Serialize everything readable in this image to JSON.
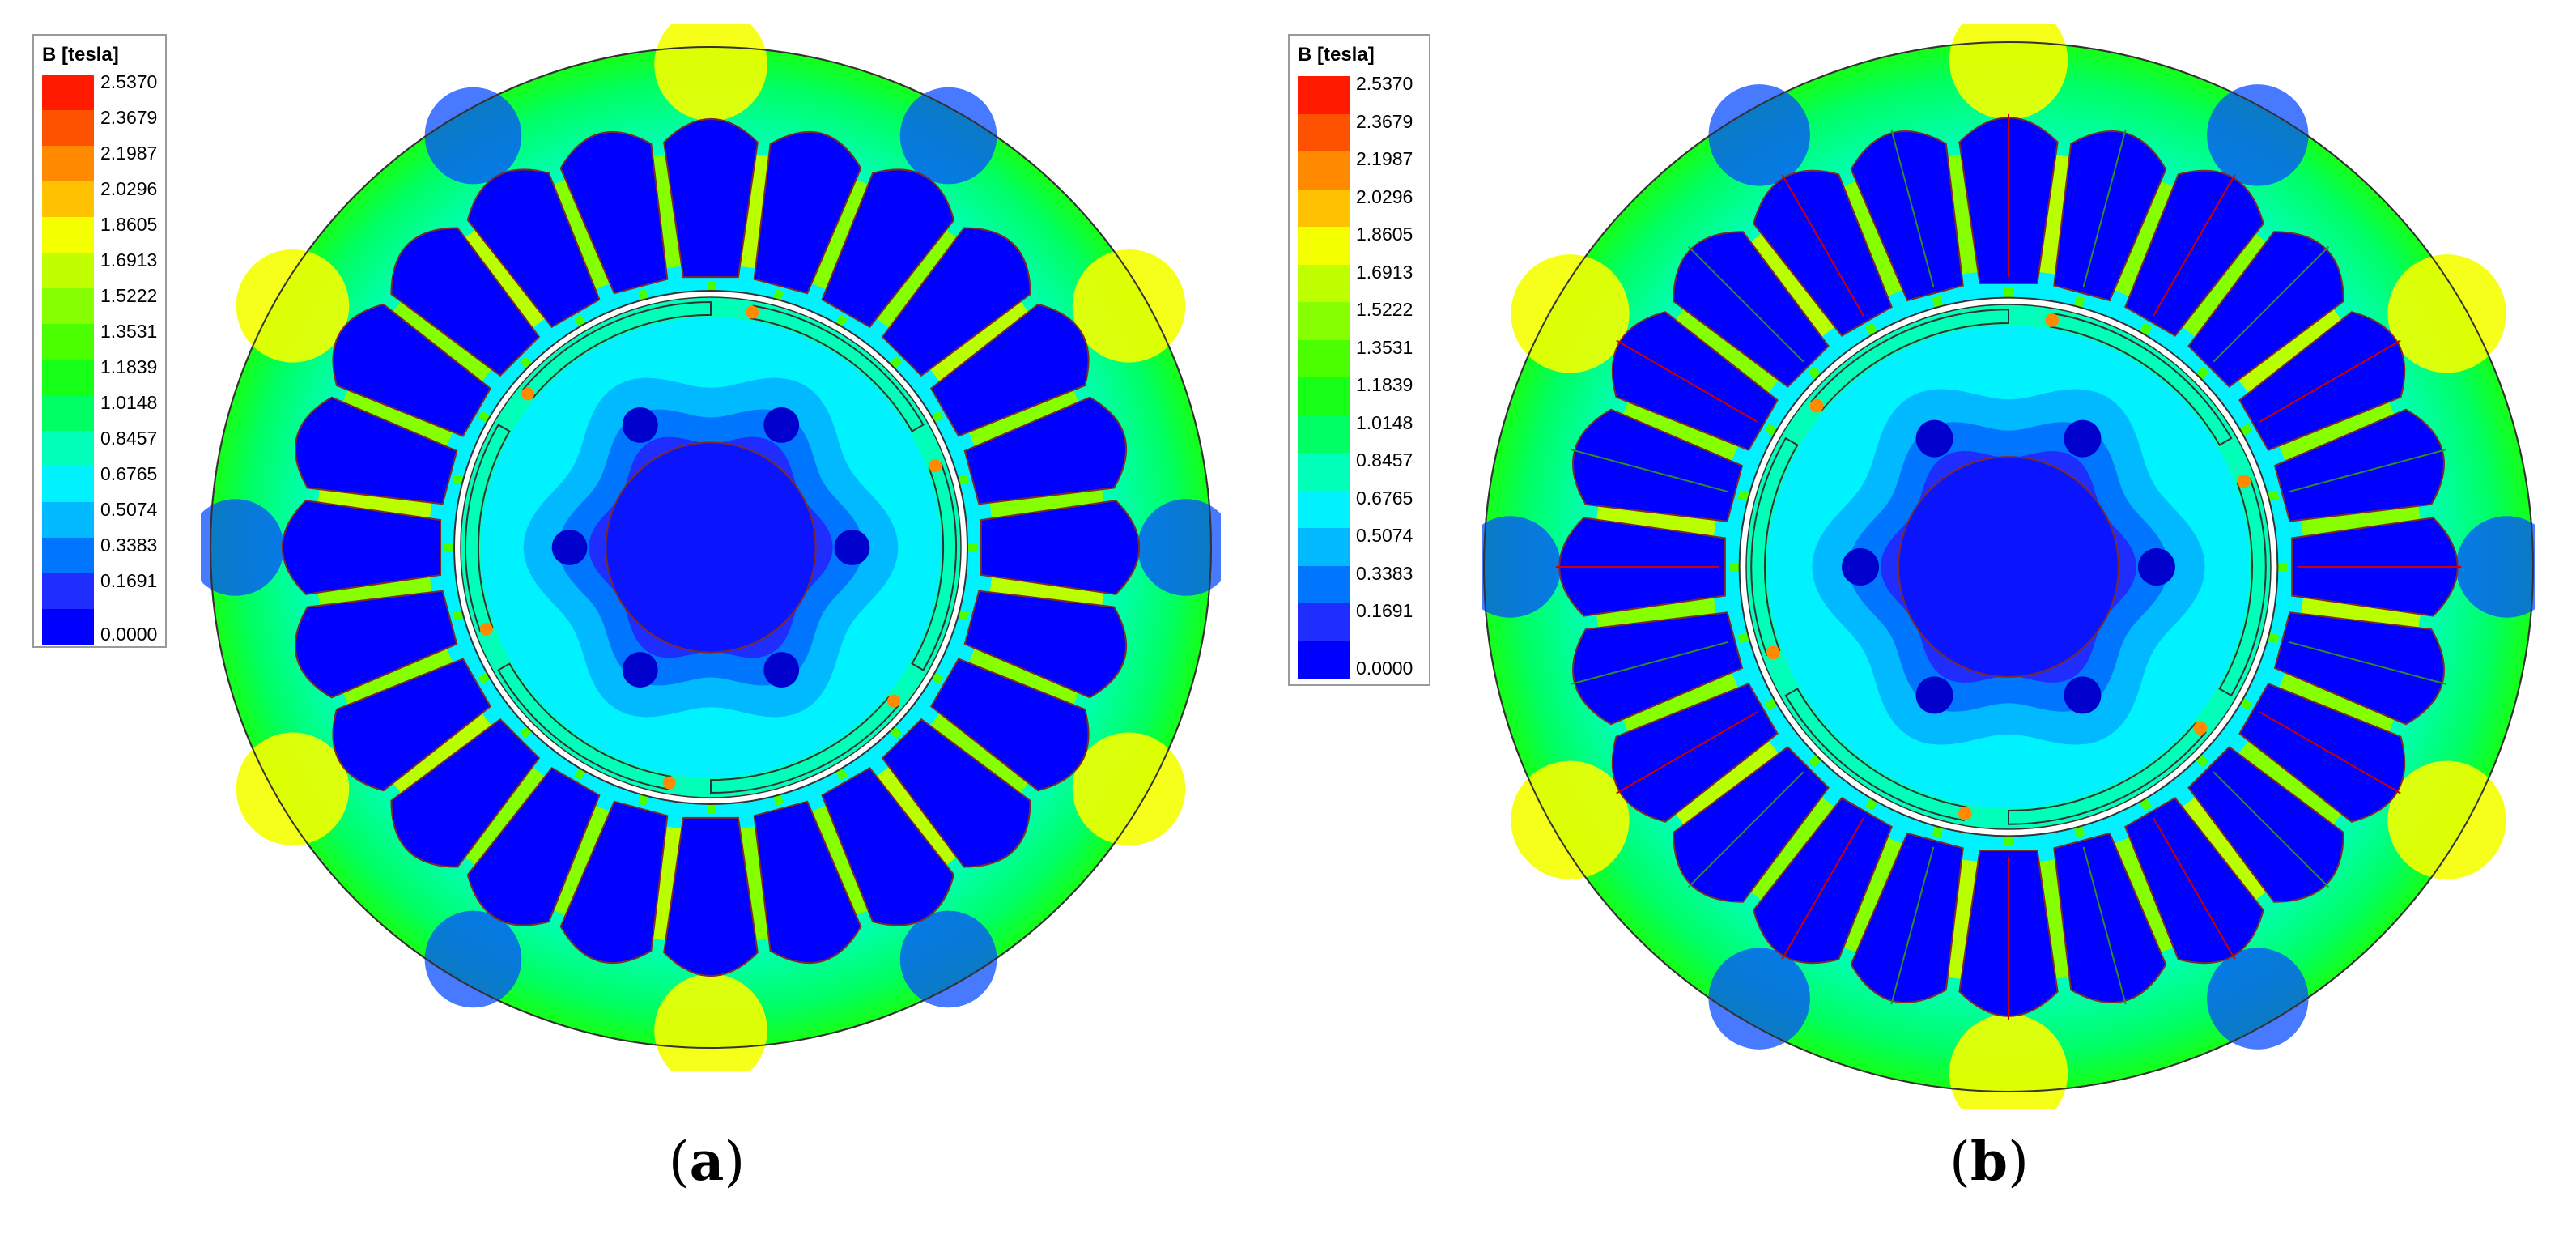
{
  "legend": {
    "title": "B [tesla]",
    "values": [
      "2.5370",
      "2.3679",
      "2.1987",
      "2.0296",
      "1.8605",
      "1.6913",
      "1.5222",
      "1.3531",
      "1.1839",
      "1.0148",
      "0.8457",
      "0.6765",
      "0.5074",
      "0.3383",
      "0.1691",
      "0.0000"
    ],
    "colors": [
      "#ff1a00",
      "#ff5200",
      "#ff8a00",
      "#ffc200",
      "#f4ff00",
      "#bfff00",
      "#86ff00",
      "#4cff00",
      "#15ff17",
      "#00ff63",
      "#00ffb8",
      "#00f2ff",
      "#00b9ff",
      "#0076ff",
      "#1f2dff",
      "#0000ff"
    ]
  },
  "panels": [
    {
      "caption_open": "(",
      "caption_letter": "a",
      "caption_close": ")"
    },
    {
      "caption_open": "(",
      "caption_letter": "b",
      "caption_close": ")"
    }
  ],
  "colors": {
    "slot_blue": "#0000ff",
    "shaft_blue": "#0a14ff",
    "yoke_cyan": "#00f2ff",
    "tooth_green": "#86ff00",
    "yellow": "#f4ff00",
    "green": "#2bff2a",
    "stator_outer_blue": "#0a4dff",
    "outline": "#333333",
    "winding_red": "#cc0000"
  }
}
